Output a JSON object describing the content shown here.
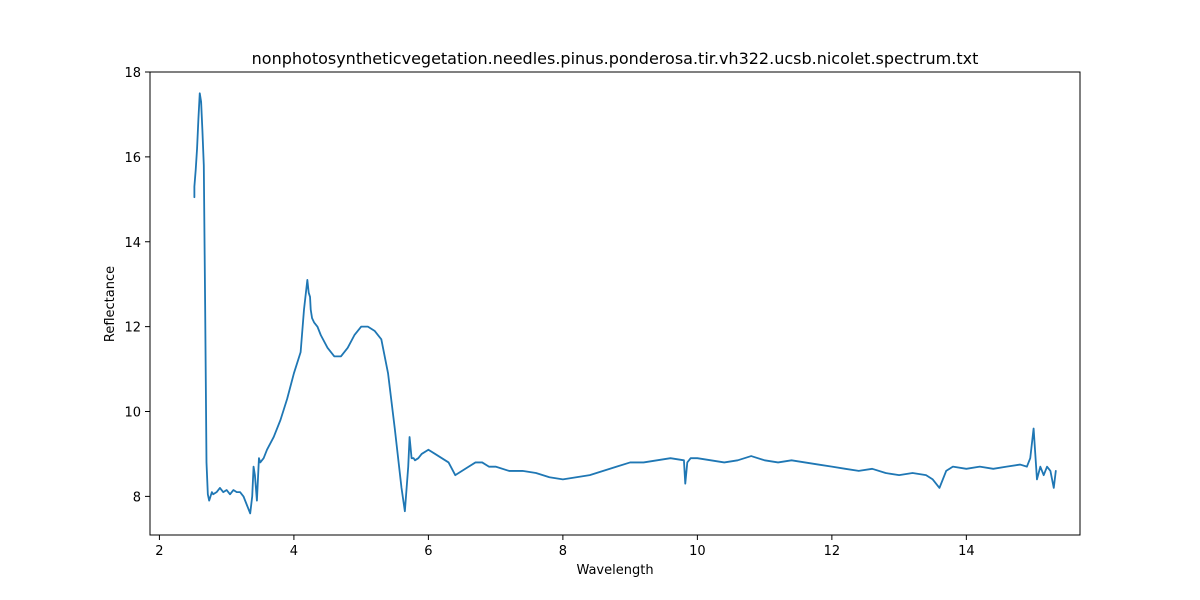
{
  "chart_data": {
    "type": "line",
    "title": "nonphotosyntheticvegetation.needles.pinus.ponderosa.tir.vh322.ucsb.nicolet.spectrum.txt",
    "xlabel": "Wavelength",
    "ylabel": "Reflectance",
    "xlim": [
      1.86,
      15.69
    ],
    "ylim": [
      7.09,
      18.0
    ],
    "xticks": [
      2,
      4,
      6,
      8,
      10,
      12,
      14
    ],
    "xtick_labels": [
      "2",
      "4",
      "6",
      "8",
      "10",
      "12",
      "14"
    ],
    "yticks": [
      8,
      10,
      12,
      14,
      16,
      18
    ],
    "ytick_labels": [
      "8",
      "10",
      "12",
      "14",
      "16",
      "18"
    ],
    "grid": false,
    "legend": "none",
    "color": "#1f77b4",
    "series": [
      {
        "x": [
          2.52,
          2.52,
          2.54,
          2.56,
          2.58,
          2.6,
          2.62,
          2.64,
          2.66,
          2.68,
          2.7,
          2.72,
          2.74,
          2.76,
          2.78,
          2.8,
          2.85,
          2.9,
          2.95,
          3.0,
          3.05,
          3.1,
          3.15,
          3.2,
          3.25,
          3.3,
          3.35,
          3.38,
          3.4,
          3.42,
          3.45,
          3.48,
          3.5,
          3.55,
          3.6,
          3.7,
          3.8,
          3.9,
          4.0,
          4.1,
          4.15,
          4.2,
          4.22,
          4.24,
          4.25,
          4.27,
          4.3,
          4.35,
          4.4,
          4.5,
          4.6,
          4.7,
          4.8,
          4.9,
          5.0,
          5.1,
          5.2,
          5.3,
          5.4,
          5.5,
          5.6,
          5.65,
          5.7,
          5.72,
          5.75,
          5.78,
          5.8,
          5.85,
          5.9,
          6.0,
          6.1,
          6.2,
          6.3,
          6.4,
          6.5,
          6.6,
          6.7,
          6.8,
          6.9,
          7.0,
          7.2,
          7.4,
          7.6,
          7.8,
          8.0,
          8.2,
          8.4,
          8.6,
          8.8,
          9.0,
          9.2,
          9.4,
          9.6,
          9.8,
          9.82,
          9.85,
          9.9,
          10.0,
          10.2,
          10.4,
          10.6,
          10.8,
          11.0,
          11.2,
          11.4,
          11.6,
          11.8,
          12.0,
          12.2,
          12.4,
          12.6,
          12.8,
          13.0,
          13.2,
          13.4,
          13.5,
          13.6,
          13.7,
          13.8,
          14.0,
          14.2,
          14.4,
          14.6,
          14.8,
          14.9,
          14.95,
          15.0,
          15.05,
          15.1,
          15.15,
          15.2,
          15.25,
          15.3,
          15.33
        ],
        "y": [
          15.05,
          15.3,
          15.7,
          16.2,
          16.9,
          17.5,
          17.3,
          16.6,
          15.8,
          12.5,
          8.8,
          8.05,
          7.9,
          8.0,
          8.1,
          8.05,
          8.1,
          8.2,
          8.1,
          8.15,
          8.05,
          8.15,
          8.1,
          8.1,
          8.0,
          7.8,
          7.6,
          8.0,
          8.7,
          8.5,
          7.9,
          8.9,
          8.8,
          8.9,
          9.1,
          9.4,
          9.8,
          10.3,
          10.9,
          11.4,
          12.4,
          13.1,
          12.8,
          12.7,
          12.4,
          12.2,
          12.1,
          12.0,
          11.8,
          11.5,
          11.3,
          11.3,
          11.5,
          11.8,
          12.0,
          12.0,
          11.9,
          11.7,
          10.9,
          9.6,
          8.2,
          7.65,
          8.7,
          9.4,
          8.9,
          8.9,
          8.85,
          8.9,
          9.0,
          9.1,
          9.0,
          8.9,
          8.8,
          8.5,
          8.6,
          8.7,
          8.8,
          8.8,
          8.7,
          8.7,
          8.6,
          8.6,
          8.55,
          8.45,
          8.4,
          8.45,
          8.5,
          8.6,
          8.7,
          8.8,
          8.8,
          8.85,
          8.9,
          8.85,
          8.3,
          8.8,
          8.9,
          8.9,
          8.85,
          8.8,
          8.85,
          8.95,
          8.85,
          8.8,
          8.85,
          8.8,
          8.75,
          8.7,
          8.65,
          8.6,
          8.65,
          8.55,
          8.5,
          8.55,
          8.5,
          8.4,
          8.2,
          8.6,
          8.7,
          8.65,
          8.7,
          8.65,
          8.7,
          8.75,
          8.7,
          8.9,
          9.6,
          8.4,
          8.7,
          8.5,
          8.7,
          8.6,
          8.2,
          8.6
        ]
      }
    ]
  }
}
